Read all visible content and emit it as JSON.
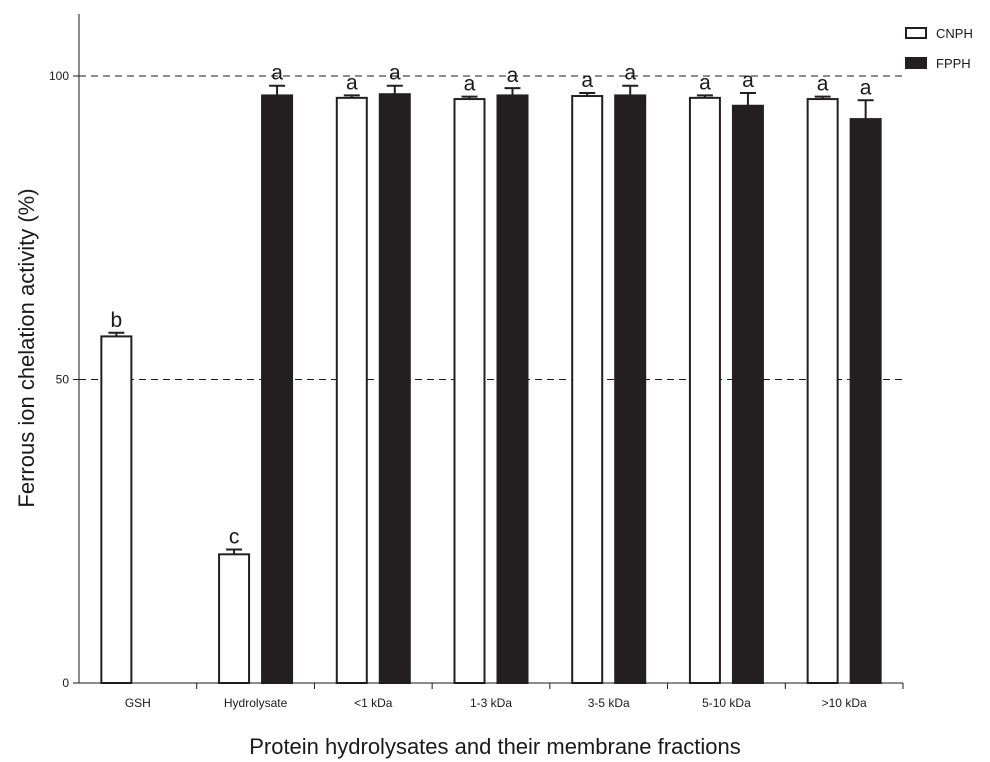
{
  "chart_data": {
    "type": "bar",
    "title": "",
    "xlabel": "Protein hydrolysates and their membrane fractions",
    "ylabel": "Ferrous ion chelation activity (%)",
    "ylim": [
      0,
      110
    ],
    "yticks": [
      0,
      50,
      100
    ],
    "ytick_labels": [
      "0",
      "50",
      "100"
    ],
    "reference_lines": [
      50,
      100
    ],
    "categories": [
      "GSH",
      "Hydrolysate",
      "<1 kDa",
      "1-3 kDa",
      "3-5 kDa",
      "5-10 kDa",
      ">10 kDa"
    ],
    "series": [
      {
        "name": "CNPH",
        "fill": "#ffffff",
        "values": [
          57.1,
          21.2,
          96.4,
          96.2,
          96.7,
          96.4,
          96.2
        ],
        "errors": [
          0.6,
          0.8,
          0.4,
          0.4,
          0.5,
          0.4,
          0.4
        ],
        "labels": [
          "b",
          "c",
          "a",
          "a",
          "a",
          "a",
          "a"
        ]
      },
      {
        "name": "FPPH",
        "fill": "#231f20",
        "values": [
          null,
          96.8,
          97.0,
          96.8,
          96.8,
          95.1,
          92.9
        ],
        "errors": [
          null,
          1.6,
          1.4,
          1.2,
          1.6,
          2.1,
          3.1
        ],
        "labels": [
          "",
          "a",
          "a",
          "a",
          "a",
          "a",
          "a"
        ]
      }
    ],
    "legend_position": "top-right",
    "grid": false
  }
}
